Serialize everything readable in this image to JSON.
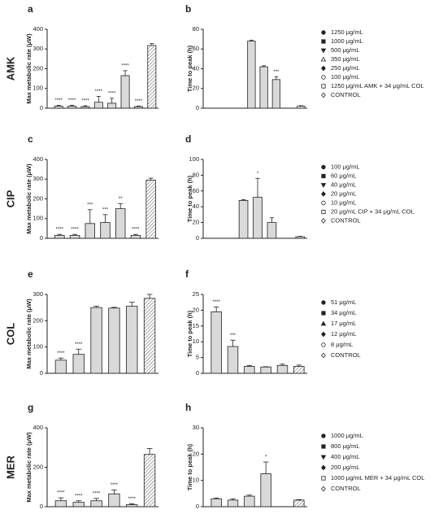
{
  "chart_data": [
    {
      "type": "bar",
      "group": "AMK",
      "label": "a",
      "ylabel": "Max metabolic rate (μW)",
      "ylim": [
        0,
        400
      ],
      "yticks": [
        0,
        100,
        200,
        300,
        400
      ],
      "categories": [
        "1250 μg/mL",
        "1000 μg/mL",
        "500 μg/mL",
        "350 μg/mL",
        "250 μg/mL",
        "100 μg/mL",
        "1250 μg/mL AMK + 34 μg/mL COL",
        "CONTROL"
      ],
      "values": [
        10,
        10,
        8,
        30,
        25,
        165,
        8,
        318
      ],
      "errors": [
        4,
        5,
        4,
        30,
        25,
        25,
        3,
        10
      ],
      "annotations": [
        "****",
        "****",
        "****",
        "****",
        "****",
        "****",
        "****",
        null
      ],
      "hatched": 7,
      "color": "#d9d9d9"
    },
    {
      "type": "bar",
      "label": "b",
      "ylabel": "Time to peak (h)",
      "ylim": [
        0,
        80
      ],
      "yticks": [
        0,
        20,
        40,
        60,
        80
      ],
      "categories": [
        "1250 μg/mL",
        "1000 μg/mL",
        "500 μg/mL",
        "350 μg/mL",
        "250 μg/mL",
        "100 μg/mL",
        "1250 μg/mL AMK + 34 μg/mL COL",
        "CONTROL"
      ],
      "markers": [
        "circle",
        "square",
        "triangle-down",
        "triangle-open",
        "diamond",
        "circle-open",
        "square-open",
        "diamond-open"
      ],
      "values": [
        null,
        null,
        null,
        68,
        42,
        29,
        null,
        2
      ],
      "errors": [
        null,
        null,
        null,
        1,
        1,
        3,
        null,
        0.5
      ],
      "annotations": [
        null,
        null,
        null,
        null,
        null,
        "***",
        null,
        null
      ],
      "hatched": 7,
      "color": "#d9d9d9"
    },
    {
      "type": "bar",
      "group": "CIP",
      "label": "c",
      "ylabel": "Max metabolic rate (μW)",
      "ylim": [
        0,
        400
      ],
      "yticks": [
        0,
        100,
        200,
        300,
        400
      ],
      "categories": [
        "100 μg/mL",
        "60 μg/mL",
        "40 μg/mL",
        "20 μg/mL",
        "10 μg/mL",
        "20 μg/mL CIP + 34 μg/mL COL",
        "CONTROL"
      ],
      "values": [
        15,
        15,
        75,
        80,
        150,
        15,
        295
      ],
      "errors": [
        5,
        5,
        70,
        40,
        25,
        5,
        10
      ],
      "annotations": [
        "****",
        "****",
        "***",
        "***",
        "**",
        "****",
        null
      ],
      "hatched": 6,
      "color": "#d9d9d9"
    },
    {
      "type": "bar",
      "label": "d",
      "ylabel": "Time to peak (h)",
      "ylim": [
        0,
        100
      ],
      "yticks": [
        0,
        20,
        40,
        60,
        80,
        100
      ],
      "categories": [
        "100 μg/mL",
        "60 μg/mL",
        "40 μg/mL",
        "20 μg/mL",
        "10 μg/mL",
        "20 μg/mL CIP + 34 μg/mL COL",
        "CONTROL"
      ],
      "markers": [
        "circle",
        "square",
        "triangle-down",
        "diamond",
        "circle-open",
        "square-open",
        "diamond-open"
      ],
      "values": [
        null,
        null,
        48,
        52,
        20,
        null,
        2
      ],
      "errors": [
        null,
        null,
        1,
        24,
        6,
        null,
        0.5
      ],
      "annotations": [
        null,
        null,
        null,
        "*",
        null,
        null,
        null
      ],
      "hatched": 6,
      "color": "#d9d9d9"
    },
    {
      "type": "bar",
      "group": "COL",
      "label": "e",
      "ylabel": "Max metabolic rate (μW)",
      "ylim": [
        0,
        300
      ],
      "yticks": [
        0,
        100,
        200,
        300
      ],
      "categories": [
        "51 μg/mL",
        "34 μg/mL",
        "17 μg/mL",
        "12 μg/mL",
        "8 μg/mL",
        "CONTROL"
      ],
      "values": [
        50,
        72,
        250,
        248,
        255,
        285
      ],
      "errors": [
        8,
        20,
        5,
        3,
        15,
        15
      ],
      "annotations": [
        "****",
        "****",
        null,
        null,
        null,
        null
      ],
      "hatched": 5,
      "color": "#d9d9d9"
    },
    {
      "type": "bar",
      "label": "f",
      "ylabel": "Time to peak (h)",
      "ylim": [
        0,
        25
      ],
      "yticks": [
        0,
        5,
        10,
        15,
        20,
        25
      ],
      "categories": [
        "51 μg/mL",
        "34 μg/mL",
        "17 μg/mL",
        "12 μg/mL",
        "8 μg/mL",
        "CONTROL"
      ],
      "markers": [
        "circle",
        "square",
        "triangle",
        "diamond",
        "circle-open",
        "diamond-open"
      ],
      "values": [
        19.5,
        8.5,
        2.2,
        2,
        2.5,
        2.2
      ],
      "errors": [
        1.5,
        2,
        0.3,
        0.1,
        0.4,
        0.4
      ],
      "annotations": [
        "****",
        "***",
        null,
        null,
        null,
        null
      ],
      "hatched": 5,
      "color": "#d9d9d9"
    },
    {
      "type": "bar",
      "group": "MER",
      "label": "g",
      "ylabel": "Max metabolic rate (μW)",
      "ylim": [
        0,
        400
      ],
      "yticks": [
        0,
        200,
        400
      ],
      "categories": [
        "1000 μg/mL",
        "800 μg/mL",
        "400 μg/mL",
        "200 μg/mL",
        "1000 μg/mL MER + 34 μg/mL COL",
        "CONTROL"
      ],
      "values": [
        30,
        22,
        30,
        65,
        10,
        265
      ],
      "errors": [
        15,
        8,
        12,
        20,
        5,
        30
      ],
      "annotations": [
        "****",
        "****",
        "****",
        "****",
        "****",
        null
      ],
      "hatched": 5,
      "color": "#d9d9d9"
    },
    {
      "type": "bar",
      "label": "h",
      "ylabel": "Time to peak (h)",
      "ylim": [
        0,
        30
      ],
      "yticks": [
        0,
        10,
        20,
        30
      ],
      "categories": [
        "1000 μg/mL",
        "800 μg/mL",
        "400 μg/mL",
        "200 μg/mL",
        "1000 μg/mL MER + 34 μg/mL COL",
        "CONTROL"
      ],
      "markers": [
        "circle",
        "square",
        "triangle-down",
        "diamond",
        "square-open",
        "diamond-open"
      ],
      "values": [
        3,
        2.5,
        4,
        12.5,
        null,
        2.5
      ],
      "errors": [
        0.3,
        0.5,
        0.4,
        4.5,
        null,
        0.2
      ],
      "annotations": [
        null,
        null,
        null,
        "*",
        null,
        null
      ],
      "hatched": 5,
      "color": "#d9d9d9"
    }
  ]
}
